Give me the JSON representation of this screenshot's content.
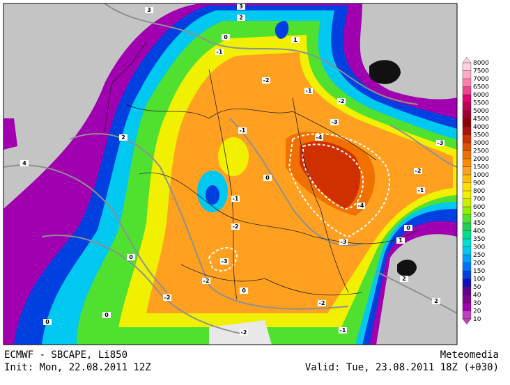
{
  "footer": {
    "title": "ECMWF - SBCAPE, Li850",
    "init": "Init: Mon, 22.08.2011 12Z",
    "source": "Meteomedia",
    "valid": "Valid: Tue, 23.08.2011 18Z (+030)"
  },
  "colorbar": {
    "labels": [
      10,
      20,
      30,
      40,
      50,
      100,
      150,
      200,
      250,
      300,
      350,
      400,
      450,
      500,
      600,
      700,
      800,
      900,
      1000,
      1500,
      2000,
      2500,
      3000,
      3500,
      4000,
      4500,
      5000,
      5500,
      6000,
      6500,
      7000,
      7500,
      8000
    ],
    "colors": [
      "#c040c0",
      "#a000b0",
      "#800090",
      "#600090",
      "#1010c0",
      "#0040e0",
      "#0070ff",
      "#00a0ff",
      "#00c8f0",
      "#00e0d0",
      "#00e090",
      "#20d050",
      "#50e030",
      "#90f000",
      "#c8f000",
      "#f0f000",
      "#ffe000",
      "#ffc000",
      "#ffa020",
      "#ff8c00",
      "#f07000",
      "#e05000",
      "#d03000",
      "#b01010",
      "#900000",
      "#a00030",
      "#c00050",
      "#e00070",
      "#f04090",
      "#ff80b0",
      "#ffa8c8",
      "#ffd0e0"
    ]
  },
  "contour_labels": [
    -1,
    -2,
    -1,
    -2,
    -3,
    -4,
    -4,
    -3,
    -1,
    0,
    -1,
    -2,
    -3,
    -2,
    -2,
    0,
    0,
    -2,
    -1,
    -2,
    0,
    0,
    2,
    4,
    3,
    1,
    -3,
    -2,
    -1,
    0,
    1,
    2,
    2,
    3,
    2,
    0
  ]
}
